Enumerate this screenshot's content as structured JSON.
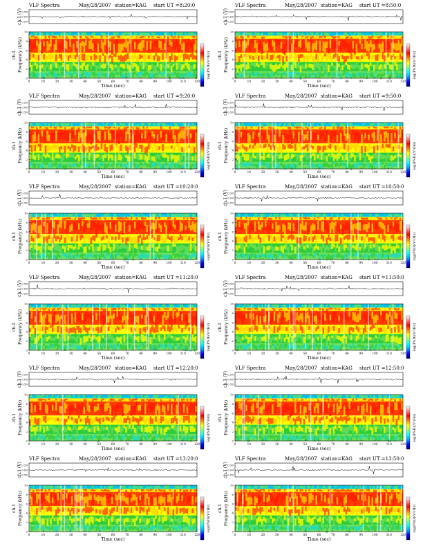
{
  "page": {
    "colors": {
      "spectrogram": [
        "#0b20ff",
        "#00b4ff",
        "#17d9c6",
        "#6fe05a",
        "#2dcc3a",
        "#ffff00",
        "#ffcf00",
        "#ff3b00",
        "#ff1a00",
        "#ffffff"
      ],
      "colorbar": [
        "#000080",
        "#0000ff",
        "#00a0ff",
        "#00ffff",
        "#80ff80",
        "#ffff00",
        "#ff8000",
        "#ff0000",
        "#ff8080",
        "#ffffff"
      ],
      "waveform": "#000000"
    }
  },
  "chart_data": [
    {
      "type": "heatmap",
      "title": "VLF Spectra",
      "date": "May/28/2007",
      "station": "station=KAG",
      "start": "start  UT  =8:20:0",
      "wave_ylabel": "ch.1 (V)",
      "wave_ticks": [
        "0.50",
        "0.00",
        "-0.50"
      ],
      "ylabel_top": "ch.1",
      "ylabel": "Frequency  (kHz)",
      "yticks": [
        "0",
        "2",
        "4",
        "6",
        "8",
        "10"
      ],
      "xlabel": "Time  (sec)",
      "xticks": [
        "0",
        "10",
        "20",
        "30",
        "40",
        "50",
        "60",
        "70",
        "80",
        "90",
        "100",
        "110",
        "120"
      ],
      "xlim": [
        0,
        120
      ],
      "ylim": [
        0,
        10
      ],
      "colorbar_label": "log(PSD)(V²/Hz)"
    },
    {
      "type": "heatmap",
      "title": "VLF Spectra",
      "date": "May/28/2007",
      "station": "station=KAG",
      "start": "start  UT  =8:50:0",
      "wave_ylabel": "ch.1 (V)",
      "wave_ticks": [
        "0.50",
        "0.00",
        "-0.50"
      ],
      "ylabel_top": "ch.1",
      "ylabel": "Frequency  (kHz)",
      "yticks": [
        "0",
        "2",
        "4",
        "6",
        "8",
        "10"
      ],
      "xlabel": "Time  (sec)",
      "xticks": [
        "0",
        "10",
        "20",
        "30",
        "40",
        "50",
        "60",
        "70",
        "80",
        "90",
        "100",
        "110",
        "120"
      ],
      "xlim": [
        0,
        120
      ],
      "ylim": [
        0,
        10
      ],
      "colorbar_label": "log(PSD)(V²/Hz)"
    },
    {
      "type": "heatmap",
      "title": "VLF Spectra",
      "date": "May/28/2007",
      "station": "station=KAG",
      "start": "start  UT  =9:20:0",
      "wave_ylabel": "ch.1 (V)",
      "wave_ticks": [
        "0.50",
        "0.00",
        "-0.50"
      ],
      "ylabel_top": "ch.1",
      "ylabel": "Frequency  (kHz)",
      "yticks": [
        "0",
        "2",
        "4",
        "6",
        "8",
        "10"
      ],
      "xlabel": "Time  (sec)",
      "xticks": [
        "0",
        "10",
        "20",
        "30",
        "40",
        "50",
        "60",
        "70",
        "80",
        "90",
        "100",
        "110",
        "120"
      ],
      "xlim": [
        0,
        120
      ],
      "ylim": [
        0,
        10
      ],
      "colorbar_label": "log(PSD)(V²/Hz)"
    },
    {
      "type": "heatmap",
      "title": "VLF Spectra",
      "date": "May/28/2007",
      "station": "station=KAG",
      "start": "start  UT  =9:50:0",
      "wave_ylabel": "ch.1 (V)",
      "wave_ticks": [
        "0.50",
        "0.00",
        "-0.50"
      ],
      "ylabel_top": "ch.1",
      "ylabel": "Frequency  (kHz)",
      "yticks": [
        "0",
        "2",
        "4",
        "6",
        "8",
        "10"
      ],
      "xlabel": "Time  (sec)",
      "xticks": [
        "0",
        "10",
        "20",
        "30",
        "40",
        "50",
        "60",
        "70",
        "80",
        "90",
        "100",
        "110",
        "120"
      ],
      "xlim": [
        0,
        120
      ],
      "ylim": [
        0,
        10
      ],
      "colorbar_label": "log(PSD)(V²/Hz)"
    },
    {
      "type": "heatmap",
      "title": "VLF Spectra",
      "date": "May/28/2007",
      "station": "station=KAG",
      "start": "start  UT  =10:20:0",
      "wave_ylabel": "ch.1 (V)",
      "wave_ticks": [
        "0.50",
        "0.00",
        "-0.50"
      ],
      "ylabel_top": "ch.1",
      "ylabel": "Frequency  (kHz)",
      "yticks": [
        "0",
        "2",
        "4",
        "6",
        "8",
        "10"
      ],
      "xlabel": "Time  (sec)",
      "xticks": [
        "0",
        "10",
        "20",
        "30",
        "40",
        "50",
        "60",
        "70",
        "80",
        "90",
        "100",
        "110",
        "120"
      ],
      "xlim": [
        0,
        120
      ],
      "ylim": [
        0,
        10
      ],
      "colorbar_label": "log(PSD)(V²/Hz)"
    },
    {
      "type": "heatmap",
      "title": "VLF Spectra",
      "date": "May/28/2007",
      "station": "station=KAG",
      "start": "start  UT  =10:50:0",
      "wave_ylabel": "ch.1 (V)",
      "wave_ticks": [
        "0.50",
        "0.00",
        "-0.50"
      ],
      "ylabel_top": "ch.1",
      "ylabel": "Frequency  (kHz)",
      "yticks": [
        "0",
        "2",
        "4",
        "6",
        "8",
        "10"
      ],
      "xlabel": "Time  (sec)",
      "xticks": [
        "0",
        "10",
        "20",
        "30",
        "40",
        "50",
        "60",
        "70",
        "80",
        "90",
        "100",
        "110",
        "120"
      ],
      "xlim": [
        0,
        120
      ],
      "ylim": [
        0,
        10
      ],
      "colorbar_label": "log(PSD)(V²/Hz)"
    },
    {
      "type": "heatmap",
      "title": "VLF Spectra",
      "date": "May/28/2007",
      "station": "station=KAG",
      "start": "start  UT  =11:20:0",
      "wave_ylabel": "ch.1 (V)",
      "wave_ticks": [
        "0.50",
        "0.00",
        "-0.50"
      ],
      "ylabel_top": "ch.1",
      "ylabel": "Frequency  (kHz)",
      "yticks": [
        "0",
        "2",
        "4",
        "6",
        "8",
        "10"
      ],
      "xlabel": "Time  (sec)",
      "xticks": [
        "0",
        "10",
        "20",
        "30",
        "40",
        "50",
        "60",
        "70",
        "80",
        "90",
        "100",
        "110",
        "120"
      ],
      "xlim": [
        0,
        120
      ],
      "ylim": [
        0,
        10
      ],
      "colorbar_label": "log(PSD)(V²/Hz)"
    },
    {
      "type": "heatmap",
      "title": "VLF Spectra",
      "date": "May/28/2007",
      "station": "station=KAG",
      "start": "start  UT  =11:50:0",
      "wave_ylabel": "ch.1 (V)",
      "wave_ticks": [
        "0.50",
        "0.00",
        "-0.50"
      ],
      "ylabel_top": "ch.1",
      "ylabel": "Frequency  (kHz)",
      "yticks": [
        "0",
        "2",
        "4",
        "6",
        "8",
        "10"
      ],
      "xlabel": "Time  (sec)",
      "xticks": [
        "0",
        "10",
        "20",
        "30",
        "40",
        "50",
        "60",
        "70",
        "80",
        "90",
        "100",
        "110",
        "120"
      ],
      "xlim": [
        0,
        120
      ],
      "ylim": [
        0,
        10
      ],
      "colorbar_label": "log(PSD)(V²/Hz)"
    },
    {
      "type": "heatmap",
      "title": "VLF Spectra",
      "date": "May/28/2007",
      "station": "station=KAG",
      "start": "start  UT  =12:20:0",
      "wave_ylabel": "ch.1 (V)",
      "wave_ticks": [
        "0.50",
        "0.00",
        "-0.50"
      ],
      "ylabel_top": "ch.1",
      "ylabel": "Frequency  (kHz)",
      "yticks": [
        "0",
        "2",
        "4",
        "6",
        "8",
        "10"
      ],
      "xlabel": "Time  (sec)",
      "xticks": [
        "0",
        "10",
        "20",
        "30",
        "40",
        "50",
        "60",
        "70",
        "80",
        "90",
        "100",
        "110",
        "120"
      ],
      "xlim": [
        0,
        120
      ],
      "ylim": [
        0,
        10
      ],
      "colorbar_label": "log(PSD)(V²/Hz)"
    },
    {
      "type": "heatmap",
      "title": "VLF Spectra",
      "date": "May/28/2007",
      "station": "station=KAG",
      "start": "start  UT  =12:50:0",
      "wave_ylabel": "ch.1 (V)",
      "wave_ticks": [
        "0.50",
        "0.00",
        "-0.50"
      ],
      "ylabel_top": "ch.1",
      "ylabel": "Frequency  (kHz)",
      "yticks": [
        "0",
        "2",
        "4",
        "6",
        "8",
        "10"
      ],
      "xlabel": "Time  (sec)",
      "xticks": [
        "0",
        "10",
        "20",
        "30",
        "40",
        "50",
        "60",
        "70",
        "80",
        "90",
        "100",
        "110",
        "120"
      ],
      "xlim": [
        0,
        120
      ],
      "ylim": [
        0,
        10
      ],
      "colorbar_label": "log(PSD)(V²/Hz)"
    },
    {
      "type": "heatmap",
      "title": "VLF Spectra",
      "date": "May/28/2007",
      "station": "station=KAG",
      "start": "start  UT  =13:20:0",
      "wave_ylabel": "ch.1 (V)",
      "wave_ticks": [
        "0.50",
        "0.00",
        "-0.50"
      ],
      "ylabel_top": "ch.1",
      "ylabel": "Frequency  (kHz)",
      "yticks": [
        "0",
        "2",
        "4",
        "6",
        "8",
        "10"
      ],
      "xlabel": "Time  (sec)",
      "xticks": [
        "0",
        "10",
        "20",
        "30",
        "40",
        "50",
        "60",
        "70",
        "80",
        "90",
        "100",
        "110",
        "120"
      ],
      "xlim": [
        0,
        120
      ],
      "ylim": [
        0,
        10
      ],
      "colorbar_label": "log(PSD)(V²/Hz)"
    },
    {
      "type": "heatmap",
      "title": "VLF Spectra",
      "date": "May/28/2007",
      "station": "station=KAG",
      "start": "start  UT  =13:50:0",
      "wave_ylabel": "ch.1 (V)",
      "wave_ticks": [
        "0.50",
        "0.00",
        "-0.50"
      ],
      "ylabel_top": "ch.1",
      "ylabel": "Frequency  (kHz)",
      "yticks": [
        "0",
        "2",
        "4",
        "6",
        "8",
        "10"
      ],
      "xlabel": "Time  (sec)",
      "xticks": [
        "0",
        "10",
        "20",
        "30",
        "40",
        "50",
        "60",
        "70",
        "80",
        "90",
        "100",
        "110",
        "120"
      ],
      "xlim": [
        0,
        120
      ],
      "ylim": [
        0,
        10
      ],
      "colorbar_label": "log(PSD)(V²/Hz)"
    }
  ]
}
